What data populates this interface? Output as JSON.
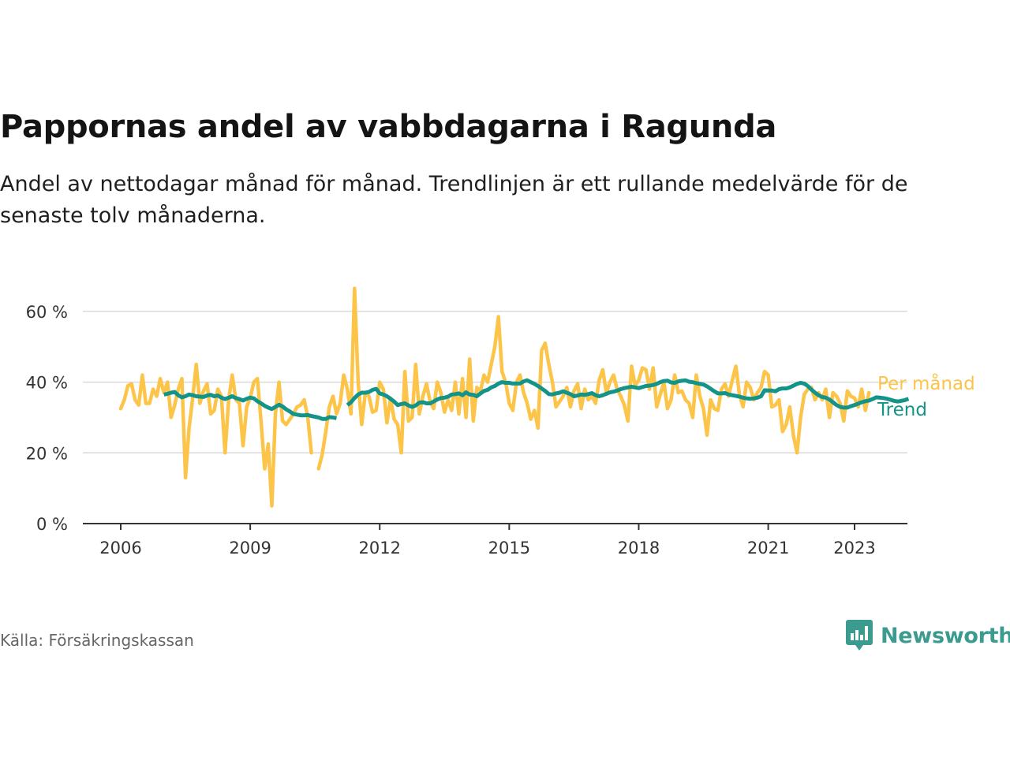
{
  "title": "Pappornas andel av vabbdagarna i Ragunda",
  "subtitle": "Andel av nettodagar månad för månad. Trendlinjen är ett rullande medelvärde för de senaste tolv månaderna.",
  "source": "Källa: Försäkringskassan",
  "brand": "Newsworthy",
  "colors": {
    "monthly": "#fcc449",
    "trend": "#149489",
    "grid": "#d9d9d9",
    "axis": "#333333",
    "brand": "#3a9b8e"
  },
  "chart_data": {
    "type": "line",
    "title": "Pappornas andel av vabbdagarna i Ragunda",
    "xlabel": "",
    "ylabel": "",
    "xlim": [
      2005.8,
      2024.0
    ],
    "ylim": [
      0,
      70
    ],
    "yticks": [
      0,
      20,
      40,
      60
    ],
    "ytick_labels": [
      "0 %",
      "20 %",
      "40 %",
      "60 %"
    ],
    "xticks": [
      2006,
      2009,
      2012,
      2015,
      2018,
      2021,
      2023
    ],
    "xtick_labels": [
      "2006",
      "2009",
      "2012",
      "2015",
      "2018",
      "2021",
      "2023"
    ],
    "grid": true,
    "legend": "right-end labels",
    "series": [
      {
        "name": "Per månad",
        "color": "#fcc449",
        "x_start": 2006.0,
        "step": 0.0833333,
        "values": [
          32.5,
          35,
          39,
          39.5,
          35,
          33.5,
          42,
          34,
          34,
          38,
          36,
          41,
          37,
          40,
          30,
          33.5,
          38,
          41,
          13,
          27,
          35.5,
          45,
          34,
          37.5,
          39.5,
          31,
          32,
          38,
          36,
          20,
          35,
          42,
          35,
          34,
          22,
          33,
          35.5,
          40,
          41,
          29,
          15.5,
          22.5,
          5,
          31,
          40,
          29,
          28,
          29.5,
          31,
          33,
          33.5,
          35,
          30,
          20,
          null,
          15.5,
          19.5,
          26,
          33,
          36,
          31,
          34,
          42,
          38,
          31,
          66.5,
          40,
          28,
          37,
          36,
          31.5,
          32,
          40,
          38,
          28.5,
          35.5,
          29.5,
          28,
          20,
          43,
          29,
          30,
          45,
          31,
          36,
          39.5,
          34.5,
          32.5,
          40,
          37,
          31.5,
          35,
          32,
          40,
          31,
          41,
          30,
          46.5,
          29,
          38.5,
          37.5,
          42,
          40,
          45,
          50,
          58.5,
          43,
          40,
          34,
          32,
          40,
          42,
          37,
          34,
          29.5,
          32,
          27,
          49,
          51,
          45,
          40,
          33,
          34.5,
          36,
          38.5,
          33,
          37.5,
          39.5,
          32.5,
          38,
          35,
          36,
          34,
          40.5,
          43.5,
          37,
          40,
          42,
          38,
          36,
          33.5,
          29,
          44.5,
          39,
          40.5,
          44,
          43.5,
          38,
          44,
          33,
          36.5,
          40,
          32.5,
          35,
          42,
          37,
          37.5,
          35,
          34,
          30,
          42,
          36,
          32.5,
          25,
          35,
          32.5,
          32,
          38,
          39.5,
          36,
          40.5,
          44.5,
          36.5,
          33,
          40,
          38.5,
          35,
          37,
          38.5,
          43,
          42,
          33,
          33.5,
          35,
          26,
          28,
          33,
          25,
          20,
          30,
          36.5,
          38,
          38.5,
          35,
          37,
          35,
          38,
          30,
          37,
          36,
          34,
          29,
          37.5,
          36,
          35.5,
          33,
          38,
          32,
          37
        ]
      },
      {
        "name": "Trend",
        "color": "#149489",
        "segments": [
          {
            "x_start": 2007.0,
            "step": 0.0833333,
            "values": [
              36.5,
              36.7,
              37,
              37.2,
              36.3,
              35.7,
              36,
              36.5,
              36.3,
              36,
              35.9,
              35.8,
              36.2,
              36.4,
              36,
              36.2,
              35.6,
              35.2,
              35.6,
              36,
              35.5,
              35.2,
              34.8,
              35.3,
              35.6,
              35.4,
              34.6,
              34,
              33.3,
              32.8,
              32.4,
              33,
              33.6,
              33.1,
              32.3,
              31.7,
              31,
              30.8,
              30.6,
              30.6,
              30.7,
              30.4,
              30.2,
              30,
              29.6,
              29.6,
              30.1,
              30,
              29.8
            ]
          },
          {
            "x_start": 2011.25,
            "step": 0.0833333,
            "values": [
              33.5,
              34.3,
              35.5,
              36.5,
              37,
              37,
              37.2,
              37.8,
              38.1,
              36.8,
              36.5,
              36,
              35.3,
              34.5,
              33.5,
              33.8,
              34,
              33.4,
              33,
              33.4,
              34.2,
              34.3,
              34,
              34,
              34.5,
              35.1,
              35.5,
              35.6,
              35.9,
              36.5,
              36.6,
              36.8,
              36.3,
              37.1,
              36.5,
              36.4,
              36,
              36.8,
              37.5,
              37.8,
              38.5,
              38.9,
              39.6,
              40,
              39.8,
              39.8,
              39.6,
              39.6,
              39.6,
              40.2,
              40.5,
              40,
              39.5,
              38.9,
              38.2,
              37.5,
              36.6,
              36.5,
              36.8,
              37,
              37.4,
              37,
              36.6,
              36,
              36.2,
              36.5,
              36.4,
              36.6,
              36.9,
              36.3,
              36,
              36.3,
              36.7,
              37.1,
              37.3,
              37.6,
              38,
              38.3,
              38.5,
              38.7,
              38.5,
              38.3,
              38.6,
              38.9,
              39,
              39.2,
              39.5,
              40,
              40.3,
              40.4,
              39.9,
              39.8,
              40.2,
              40.4,
              40.5,
              40.1,
              40,
              39.7,
              39.5,
              39.3,
              38.8,
              38.1,
              37.4,
              36.8,
              36.8,
              36.9,
              36.5,
              36.3,
              36.1,
              35.9,
              35.6,
              35.4,
              35.3,
              35.4,
              35.6,
              36,
              37.7,
              37.6,
              37.6,
              37.4,
              38,
              38.2,
              38.2,
              38.5,
              39,
              39.5,
              39.8,
              39.6,
              38.9,
              37.9,
              37,
              36.3,
              35.8,
              35.6,
              35.1,
              34.3,
              33.5,
              33,
              32.8,
              32.8,
              33.2,
              33.5,
              33.9,
              34.3,
              34.6,
              34.8,
              35.2,
              35.7,
              35.6,
              35.5,
              35.3,
              35,
              34.7,
              34.5,
              34.7,
              34.9,
              35.3
            ]
          }
        ]
      }
    ]
  }
}
